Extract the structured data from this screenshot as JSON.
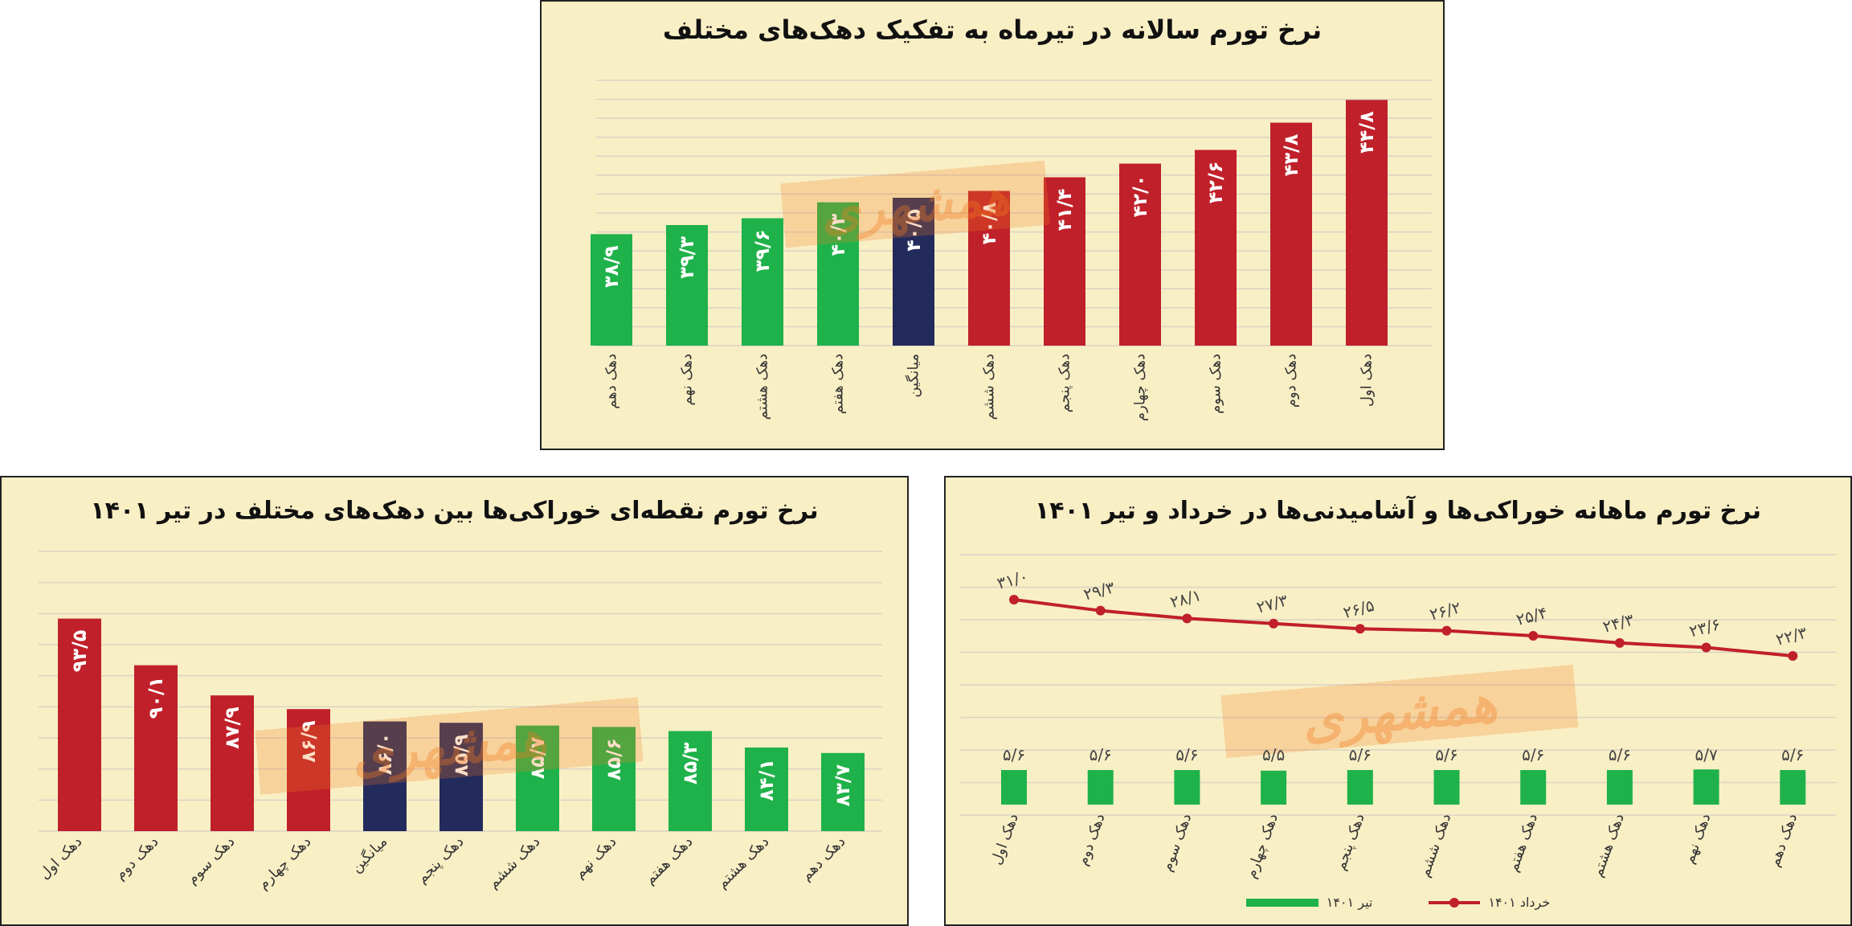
{
  "watermark": "همشهری",
  "colors": {
    "red": "#c0202a",
    "green": "#1fb24a",
    "navy": "#232a5c",
    "panel_bg": "#f9efc5",
    "grid": "#d9d4c4"
  },
  "chart_data": [
    {
      "id": "annual-inflation",
      "type": "bar",
      "title": "نرخ تورم سالانه در تیرماه به تفکیک دهک‌های مختلف",
      "categories": [
        "دهک دهم",
        "دهک نهم",
        "دهک هشتم",
        "دهک هفتم",
        "میانگین",
        "دهک ششم",
        "دهک پنجم",
        "دهک چهارم",
        "دهک سوم",
        "دهک دوم",
        "دهک اول"
      ],
      "values": [
        38.9,
        39.3,
        39.6,
        40.3,
        40.5,
        40.8,
        41.4,
        42.0,
        42.6,
        43.8,
        44.8
      ],
      "value_labels": [
        "۳۸/۹",
        "۳۹/۳",
        "۳۹/۶",
        "۴۰/۳",
        "۴۰/۵",
        "۴۰/۸",
        "۴۱/۴",
        "۴۲/۰",
        "۴۲/۶",
        "۴۳/۸",
        "۴۴/۸"
      ],
      "bar_colors": [
        "green",
        "green",
        "green",
        "green",
        "navy",
        "red",
        "red",
        "red",
        "red",
        "red",
        "red"
      ],
      "ylim": [
        34,
        47
      ],
      "grid": true,
      "label_orientation": "vertical"
    },
    {
      "id": "point-food-inflation",
      "type": "bar",
      "title": "نرخ تورم نقطه‌ای خوراکی‌ها بین دهک‌های مختلف در تیر ۱۴۰۱",
      "categories": [
        "دهک اول",
        "دهک دوم",
        "دهک سوم",
        "دهک چهارم",
        "میانگین",
        "دهک پنجم",
        "دهک ششم",
        "دهک نهم",
        "دهک هفتم",
        "دهک هشتم",
        "دهک دهم"
      ],
      "values": [
        93.5,
        90.1,
        87.9,
        86.9,
        86.0,
        85.9,
        85.7,
        85.6,
        85.3,
        84.1,
        83.7
      ],
      "value_labels": [
        "۹۳/۵",
        "۹۰/۱",
        "۸۷/۹",
        "۸۶/۹",
        "۸۶/۰",
        "۸۵/۹",
        "۸۵/۷",
        "۸۵/۶",
        "۸۵/۳",
        "۸۴/۱",
        "۸۳/۷"
      ],
      "bar_colors": [
        "red",
        "red",
        "red",
        "red",
        "navy",
        "navy",
        "green",
        "green",
        "green",
        "green",
        "green"
      ],
      "ylim": [
        78,
        95
      ],
      "grid": true,
      "label_orientation": "diagonal"
    },
    {
      "id": "monthly-food-inflation",
      "type": "line",
      "title": "نرخ تورم ماهانه خوراکی‌ها و آشامیدنی‌ها در خرداد و تیر ۱۴۰۱",
      "categories": [
        "دهک اول",
        "دهک دوم",
        "دهک سوم",
        "دهک چهارم",
        "دهک پنجم",
        "دهک ششم",
        "دهک هفتم",
        "دهک هشتم",
        "دهک نهم",
        "دهک دهم"
      ],
      "series": [
        {
          "name": "خرداد ۱۴۰۱",
          "kind": "line",
          "color": "red",
          "values": [
            31.0,
            29.3,
            28.1,
            27.3,
            26.5,
            26.2,
            25.4,
            24.3,
            23.6,
            22.3
          ],
          "value_labels": [
            "۳۱/۰",
            "۲۹/۳",
            "۲۸/۱",
            "۲۷/۳",
            "۲۶/۵",
            "۲۶/۲",
            "۲۵/۴",
            "۲۴/۳",
            "۲۳/۶",
            "۲۲/۳"
          ]
        },
        {
          "name": "تیر ۱۴۰۱",
          "kind": "bar",
          "color": "green",
          "values": [
            5.6,
            5.6,
            5.6,
            5.5,
            5.6,
            5.6,
            5.6,
            5.6,
            5.7,
            5.6
          ],
          "value_labels": [
            "۵/۶",
            "۵/۶",
            "۵/۶",
            "۵/۵",
            "۵/۶",
            "۵/۶",
            "۵/۶",
            "۵/۶",
            "۵/۷",
            "۵/۶"
          ]
        }
      ],
      "grid": true,
      "legend_position": "bottom"
    }
  ]
}
